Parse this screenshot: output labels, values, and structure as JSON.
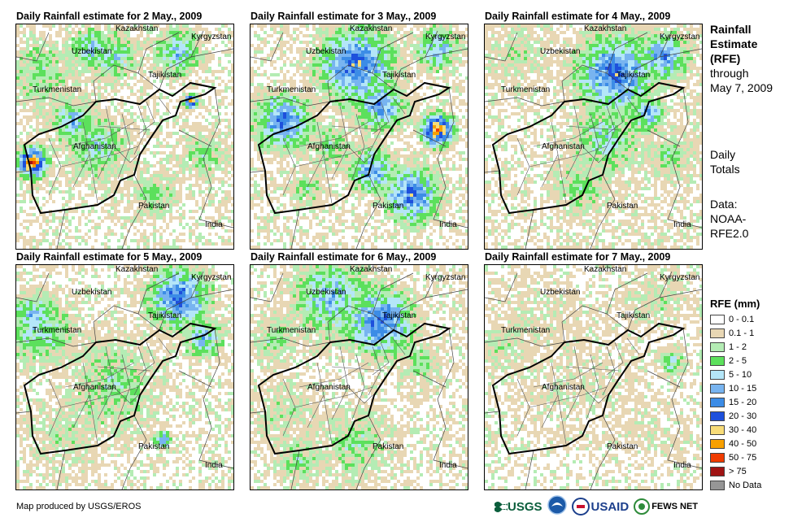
{
  "panels": [
    {
      "title": "Daily Rainfall estimate for 2 May., 2009"
    },
    {
      "title": "Daily Rainfall estimate for 3 May., 2009"
    },
    {
      "title": "Daily Rainfall estimate for 4 May., 2009"
    },
    {
      "title": "Daily Rainfall estimate for 5 May., 2009"
    },
    {
      "title": "Daily Rainfall estimate for 6 May., 2009"
    },
    {
      "title": "Daily Rainfall estimate for 7 May., 2009"
    }
  ],
  "places": {
    "kazakhstan": "Kazakhstan",
    "kyrgyzstan": "Kyrgyzstan",
    "uzbekistan": "Uzbekistan",
    "tajikistan": "Tajikistan",
    "turkmenistan": "Turkmenistan",
    "afghanistan": "Afghanistan",
    "pakistan": "Pakistan",
    "india": "India"
  },
  "sidebar": {
    "title_line1": "Rainfall",
    "title_line2": "Estimate",
    "title_line3": "(RFE)",
    "through": "through",
    "date": "May 7, 2009",
    "daily1": "Daily",
    "daily2": "Totals",
    "data1": "Data:",
    "data2": "NOAA-",
    "data3": "RFE2.0"
  },
  "legend": {
    "title": "RFE (mm)",
    "items": [
      {
        "label": "0 - 0.1",
        "color": "#ffffff"
      },
      {
        "label": "0.1 - 1",
        "color": "#e8d7b4"
      },
      {
        "label": "1 - 2",
        "color": "#b4ecb4"
      },
      {
        "label": "2 - 5",
        "color": "#5ce05c"
      },
      {
        "label": "5 - 10",
        "color": "#b4e6f8"
      },
      {
        "label": "10 - 15",
        "color": "#78b4f0"
      },
      {
        "label": "15 - 20",
        "color": "#3c8ce6"
      },
      {
        "label": "20 - 30",
        "color": "#1e50dc"
      },
      {
        "label": "30 - 40",
        "color": "#f8dc78"
      },
      {
        "label": "40 - 50",
        "color": "#f8a000"
      },
      {
        "label": "50 - 75",
        "color": "#f03c00"
      },
      {
        "label": "> 75",
        "color": "#a01414"
      },
      {
        "label": "No Data",
        "color": "#969696"
      }
    ]
  },
  "credit": "Map produced by USGS/EROS",
  "logos": {
    "usgs": "USGS",
    "usaid": "USAID",
    "fewsnet": "FEWS NET"
  }
}
